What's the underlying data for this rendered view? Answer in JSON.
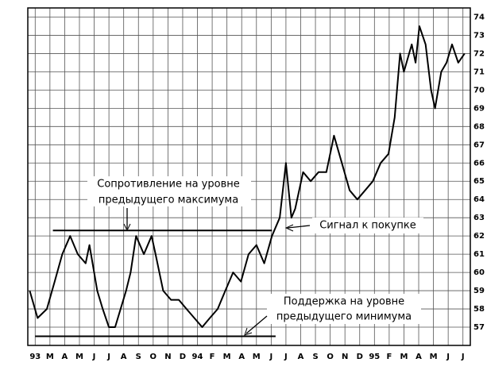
{
  "chart_data": {
    "type": "line",
    "color": "#000000",
    "grid": true,
    "x": [
      -0.37,
      0.16,
      0.79,
      1.32,
      1.84,
      2.37,
      2.89,
      3.42,
      3.68,
      4.21,
      4.58,
      5,
      5.42,
      5.79,
      6.16,
      6.47,
      6.84,
      7.37,
      7.89,
      8.16,
      8.68,
      9.21,
      9.74,
      10.26,
      10.79,
      11.32,
      11.84,
      12.37,
      12.89,
      13.42,
      13.95,
      14.47,
      15,
      15.53,
      16.05,
      16.58,
      17,
      17.37,
      17.63,
      18.16,
      18.68,
      19.21,
      19.74,
      20.26,
      20.79,
      21.32,
      21.84,
      22.37,
      22.89,
      23.42,
      23.95,
      24.37,
      24.74,
      25,
      25.53,
      25.79,
      26.05,
      26.47,
      26.84,
      27.11,
      27.53,
      27.89,
      28.26,
      28.68,
      29.11
    ],
    "values": [
      59,
      57.5,
      58,
      59.5,
      61,
      62,
      61,
      60.5,
      61.5,
      59,
      58,
      57,
      57,
      58,
      59,
      60,
      62,
      61,
      62,
      61,
      59,
      58.5,
      58.5,
      58,
      57.5,
      57,
      57.5,
      58,
      59,
      60,
      59.5,
      61,
      61.5,
      60.5,
      62,
      63,
      66,
      63,
      63.5,
      65.5,
      65,
      65.5,
      65.5,
      67.5,
      66,
      64.5,
      64,
      64.5,
      65,
      66,
      66.5,
      68.5,
      72,
      71,
      72.5,
      71.5,
      73.5,
      72.5,
      70,
      69,
      71,
      71.5,
      72.5,
      71.5,
      72
    ],
    "xlim": [
      -0.5,
      29.5
    ],
    "xticks": [
      {
        "value": 0,
        "label": "93"
      },
      {
        "value": 1,
        "label": "M"
      },
      {
        "value": 2,
        "label": "A"
      },
      {
        "value": 3,
        "label": "M"
      },
      {
        "value": 4,
        "label": "J"
      },
      {
        "value": 5,
        "label": "J"
      },
      {
        "value": 6,
        "label": "A"
      },
      {
        "value": 7,
        "label": "S"
      },
      {
        "value": 8,
        "label": "O"
      },
      {
        "value": 9,
        "label": "N"
      },
      {
        "value": 10,
        "label": "D"
      },
      {
        "value": 11,
        "label": "94"
      },
      {
        "value": 12,
        "label": "F"
      },
      {
        "value": 13,
        "label": "M"
      },
      {
        "value": 14,
        "label": "A"
      },
      {
        "value": 15,
        "label": "M"
      },
      {
        "value": 16,
        "label": "J"
      },
      {
        "value": 17,
        "label": "J"
      },
      {
        "value": 18,
        "label": "A"
      },
      {
        "value": 19,
        "label": "S"
      },
      {
        "value": 20,
        "label": "O"
      },
      {
        "value": 21,
        "label": "N"
      },
      {
        "value": 22,
        "label": "D"
      },
      {
        "value": 23,
        "label": "95"
      },
      {
        "value": 24,
        "label": "F"
      },
      {
        "value": 25,
        "label": "M"
      },
      {
        "value": 26,
        "label": "A"
      },
      {
        "value": 27,
        "label": "M"
      },
      {
        "value": 28,
        "label": "J"
      },
      {
        "value": 29,
        "label": "J"
      }
    ],
    "ylim": [
      56,
      74.5
    ],
    "yticks": [
      57,
      58,
      59,
      60,
      61,
      62,
      63,
      64,
      65,
      66,
      67,
      68,
      69,
      70,
      71,
      72,
      73,
      74
    ],
    "annotations": [
      {
        "lines": [
          "Сопротивление на уровне",
          "предыдущего максимума"
        ],
        "level": 62.3,
        "x": [
          1.2,
          16.05
        ]
      },
      {
        "lines": [
          "Сигнал к покупке"
        ]
      },
      {
        "lines": [
          "Поддержка на уровне",
          "предыдущего минимума"
        ],
        "level": 56.5,
        "x": [
          0,
          16.3
        ]
      }
    ]
  }
}
